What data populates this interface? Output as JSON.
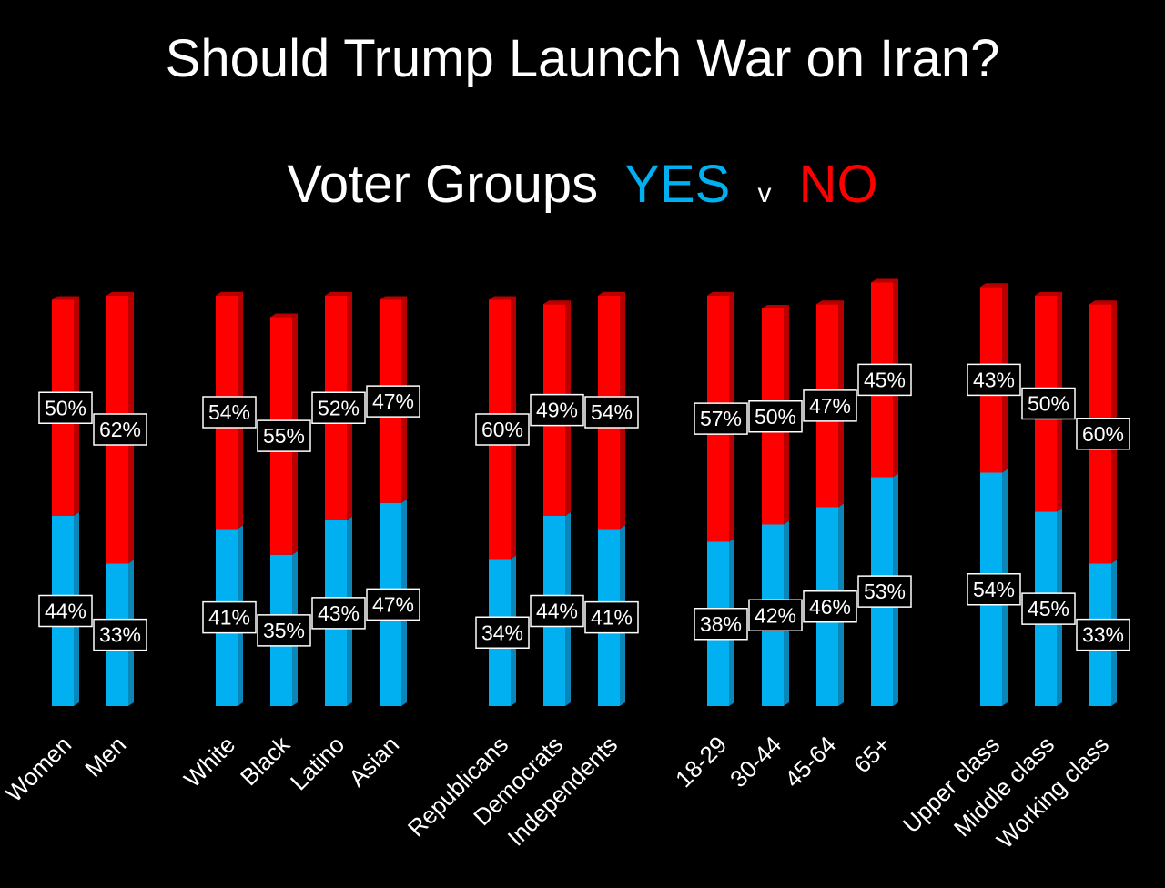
{
  "chart_data": {
    "type": "stacked_bar",
    "title": "Should Trump Launch War on Iran?",
    "subtitle_prefix": "Voter Groups",
    "subtitle_joiner": "v",
    "categories": [
      "Women",
      "Men",
      null,
      "White",
      "Black",
      "Latino",
      "Asian",
      null,
      "Republicans",
      "Democrats",
      "Independents",
      null,
      "18-29",
      "30-44",
      "45-64",
      "65+",
      null,
      "Upper class",
      "Middle class",
      "Working class"
    ],
    "series": [
      {
        "name": "YES",
        "color": "#00b0f0",
        "side_color": "#0a86b8",
        "values": [
          44,
          33,
          null,
          41,
          35,
          43,
          47,
          null,
          34,
          44,
          41,
          null,
          38,
          42,
          46,
          53,
          null,
          54,
          45,
          33
        ],
        "value_labels": [
          "44%",
          "33%",
          null,
          "41%",
          "35%",
          "43%",
          "47%",
          null,
          "34%",
          "44%",
          "41%",
          null,
          "38%",
          "42%",
          "46%",
          "53%",
          null,
          "54%",
          "45%",
          "33%"
        ]
      },
      {
        "name": "NO",
        "color": "#ff0000",
        "side_color": "#b80000",
        "values": [
          50,
          62,
          null,
          54,
          55,
          52,
          47,
          null,
          60,
          49,
          54,
          null,
          57,
          50,
          47,
          45,
          null,
          43,
          50,
          60
        ],
        "value_labels": [
          "50%",
          "62%",
          null,
          "54%",
          "55%",
          "52%",
          "47%",
          null,
          "60%",
          "49%",
          "54%",
          null,
          "57%",
          "50%",
          "47%",
          "45%",
          null,
          "43%",
          "50%",
          "60%"
        ]
      }
    ],
    "ylim": [
      0,
      100
    ]
  }
}
